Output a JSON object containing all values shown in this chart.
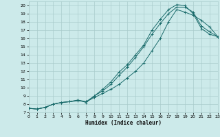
{
  "xlabel": "Humidex (Indice chaleur)",
  "bg_color": "#cceaea",
  "grid_color": "#aacccc",
  "line_color": "#1a6b6b",
  "xlim": [
    0,
    23
  ],
  "ylim": [
    7,
    20.5
  ],
  "xticks": [
    0,
    1,
    2,
    3,
    4,
    5,
    6,
    7,
    8,
    9,
    10,
    11,
    12,
    13,
    14,
    15,
    16,
    17,
    18,
    19,
    20,
    21,
    22,
    23
  ],
  "yticks": [
    7,
    8,
    9,
    10,
    11,
    12,
    13,
    14,
    15,
    16,
    17,
    18,
    19,
    20
  ],
  "line1_x": [
    0,
    1,
    2,
    3,
    4,
    5,
    6,
    7,
    8,
    9,
    10,
    11,
    12,
    13,
    14,
    15,
    16,
    17,
    18,
    19,
    20,
    21,
    22,
    23
  ],
  "line1_y": [
    7.5,
    7.4,
    7.6,
    8.0,
    8.2,
    8.3,
    8.4,
    8.3,
    8.8,
    9.3,
    9.8,
    10.4,
    11.2,
    12.0,
    13.0,
    14.5,
    16.0,
    18.0,
    19.5,
    19.2,
    18.8,
    18.2,
    17.4,
    16.2
  ],
  "line2_x": [
    0,
    1,
    2,
    3,
    4,
    5,
    6,
    7,
    8,
    9,
    10,
    11,
    12,
    13,
    14,
    15,
    16,
    17,
    18,
    19,
    20,
    21,
    22,
    23
  ],
  "line2_y": [
    7.5,
    7.4,
    7.6,
    8.0,
    8.2,
    8.3,
    8.5,
    8.2,
    9.0,
    9.6,
    10.4,
    11.5,
    12.5,
    13.7,
    15.0,
    16.5,
    17.8,
    19.0,
    19.8,
    19.8,
    19.2,
    17.5,
    16.8,
    16.2
  ],
  "line3_x": [
    0,
    1,
    2,
    3,
    4,
    5,
    6,
    7,
    8,
    9,
    10,
    11,
    12,
    13,
    14,
    15,
    16,
    17,
    18,
    19,
    20,
    21,
    22,
    23
  ],
  "line3_y": [
    7.5,
    7.4,
    7.6,
    8.0,
    8.2,
    8.3,
    8.5,
    8.3,
    9.0,
    9.8,
    10.7,
    11.9,
    12.8,
    14.0,
    15.2,
    17.0,
    18.3,
    19.5,
    20.1,
    20.0,
    19.0,
    17.2,
    16.5,
    16.2
  ]
}
